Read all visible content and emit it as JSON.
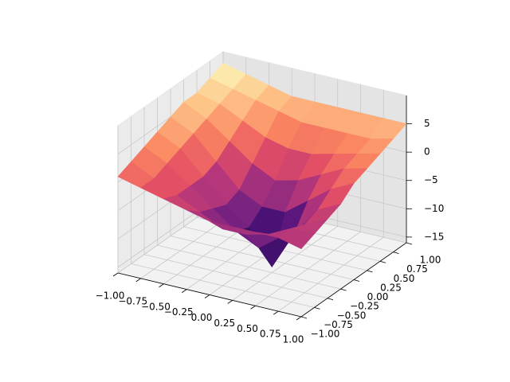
{
  "chart_data": {
    "type": "surface",
    "colormap": "magma",
    "x": [
      -1,
      -0.75,
      -0.5,
      -0.25,
      0,
      0.25,
      0.5,
      0.75,
      1
    ],
    "y": [
      -1,
      -0.75,
      -0.5,
      -0.25,
      0,
      0.25,
      0.5,
      0.75,
      1
    ],
    "z": [
      [
        1,
        0,
        -1,
        -2,
        -3,
        -3,
        -3,
        -3,
        -4
      ],
      [
        2,
        0,
        -2,
        -4,
        -6,
        -6,
        -5,
        -3,
        -3
      ],
      [
        3,
        1,
        -2,
        -5,
        -8,
        -10,
        -7,
        -4,
        -2
      ],
      [
        4,
        2,
        -2,
        -6,
        -9,
        -15,
        -8,
        -3,
        -1
      ],
      [
        5,
        3,
        -1,
        -5,
        -7,
        -7,
        -4,
        -1,
        1
      ],
      [
        6,
        4,
        1,
        -2,
        -4,
        -3,
        -1,
        1,
        2
      ],
      [
        6,
        5,
        3,
        1,
        0,
        0,
        1,
        2,
        3
      ],
      [
        7,
        6,
        5,
        4,
        3,
        3,
        3,
        3,
        4
      ],
      [
        8,
        7,
        6,
        5,
        5,
        5,
        5,
        5,
        5
      ]
    ],
    "xlim": [
      -1,
      1
    ],
    "ylim": [
      -1,
      1
    ],
    "zlim": [
      -16,
      10
    ],
    "xticks": [
      {
        "value": -1,
        "label": "−1.00"
      },
      {
        "value": -0.75,
        "label": "−0.75"
      },
      {
        "value": -0.5,
        "label": "−0.50"
      },
      {
        "value": -0.25,
        "label": "−0.25"
      },
      {
        "value": 0,
        "label": "0.00"
      },
      {
        "value": 0.25,
        "label": "0.25"
      },
      {
        "value": 0.5,
        "label": "0.50"
      },
      {
        "value": 0.75,
        "label": "0.75"
      },
      {
        "value": 1,
        "label": "1.00"
      }
    ],
    "yticks": [
      {
        "value": -1,
        "label": "−1.00"
      },
      {
        "value": -0.75,
        "label": "−0.75"
      },
      {
        "value": -0.5,
        "label": "−0.50"
      },
      {
        "value": -0.25,
        "label": "−0.25"
      },
      {
        "value": 0,
        "label": "0.00"
      },
      {
        "value": 0.25,
        "label": "0.25"
      },
      {
        "value": 0.5,
        "label": "0.50"
      },
      {
        "value": 0.75,
        "label": "0.75"
      },
      {
        "value": 1,
        "label": "1.00"
      }
    ],
    "zticks": [
      {
        "value": -15,
        "label": "−15"
      },
      {
        "value": -10,
        "label": "−10"
      },
      {
        "value": -5,
        "label": "−5"
      },
      0,
      5
    ],
    "grid": true
  }
}
